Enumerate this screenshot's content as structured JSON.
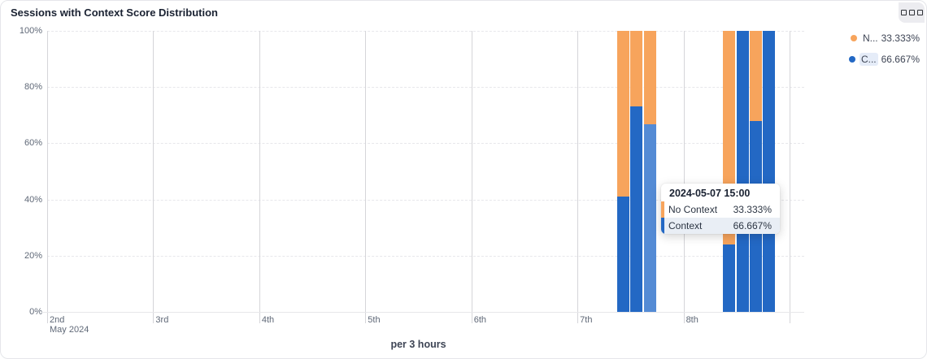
{
  "header": {
    "title": "Sessions with Context Score Distribution",
    "options_icon": "grid-handle-icon"
  },
  "legend": [
    {
      "label": "N...",
      "value": "33.333%",
      "color": "#f7a45c",
      "label_highlighted": false
    },
    {
      "label": "C...",
      "value": "66.667%",
      "color": "#2368c4",
      "label_highlighted": true
    }
  ],
  "tooltip": {
    "header": "2024-05-07 15:00",
    "rows": [
      {
        "label": "No Context",
        "value": "33.333%",
        "color": "#f7a45c",
        "highlighted": false
      },
      {
        "label": "Context",
        "value": "66.667%",
        "color": "#2368c4",
        "highlighted": true
      }
    ]
  },
  "colors": {
    "no_context": "#f7a45c",
    "context": "#2368c4",
    "context_highlight": "#548bd5",
    "grid_vertical": "#d5d5d9",
    "axis_text": "#5f6877"
  },
  "chart_data": {
    "type": "bar",
    "stacked": true,
    "unit": "percent",
    "title": "Sessions with Context Score Distribution",
    "xlabel": "per 3 hours",
    "ylabel": "",
    "ylim": [
      0,
      100
    ],
    "y_ticks": [
      "0%",
      "20%",
      "40%",
      "60%",
      "80%",
      "100%"
    ],
    "x_ticks": [
      "2nd",
      "3rd",
      "4th",
      "5th",
      "6th",
      "7th",
      "8th"
    ],
    "x_axis_sub_label": "May 2024",
    "grid": "horizontal-dashed, vertical-solid",
    "legend_position": "top-right",
    "series": [
      {
        "name": "No Context",
        "color": "#f7a45c"
      },
      {
        "name": "Context",
        "color": "#2368c4"
      }
    ],
    "bars": [
      {
        "time": "2024-05-07 09:00",
        "day": 7,
        "hour": 9,
        "context": 41,
        "no_context": 59,
        "highlighted": false
      },
      {
        "time": "2024-05-07 12:00",
        "day": 7,
        "hour": 12,
        "context": 73,
        "no_context": 27,
        "highlighted": false
      },
      {
        "time": "2024-05-07 15:00",
        "day": 7,
        "hour": 15,
        "context": 66.667,
        "no_context": 33.333,
        "highlighted": true
      },
      {
        "time": "2024-05-08 09:00",
        "day": 8,
        "hour": 9,
        "context": 24,
        "no_context": 76,
        "highlighted": false
      },
      {
        "time": "2024-05-08 12:00",
        "day": 8,
        "hour": 12,
        "context": 100,
        "no_context": 0,
        "highlighted": false
      },
      {
        "time": "2024-05-08 15:00",
        "day": 8,
        "hour": 15,
        "context": 68,
        "no_context": 32,
        "highlighted": false
      },
      {
        "time": "2024-05-08 18:00",
        "day": 8,
        "hour": 18,
        "context": 100,
        "no_context": 0,
        "highlighted": false
      }
    ]
  }
}
